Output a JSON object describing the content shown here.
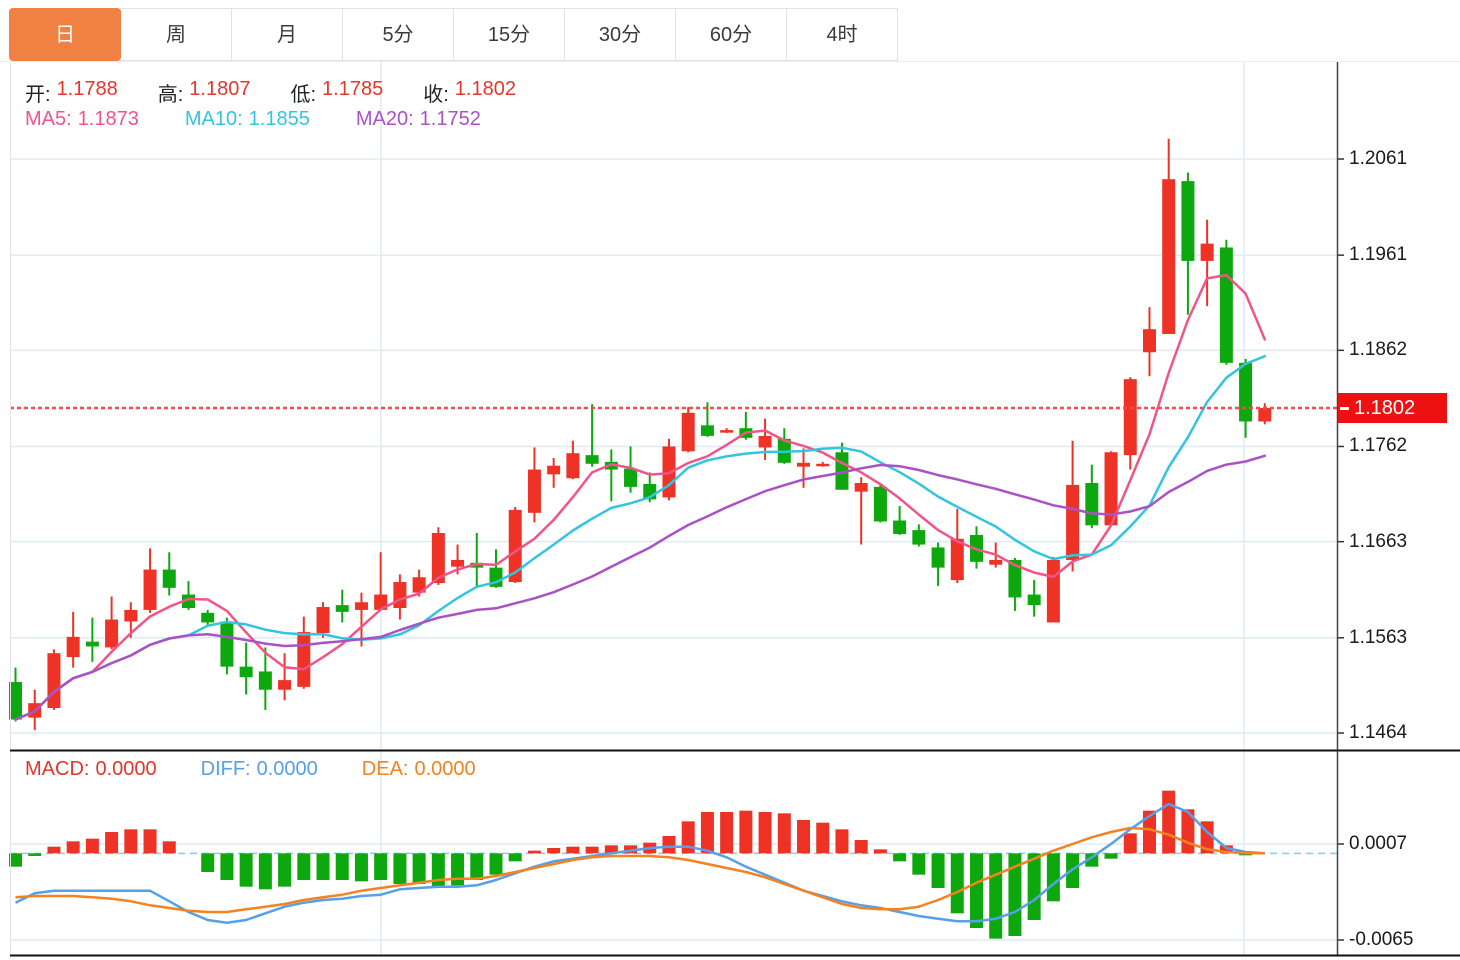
{
  "tabs": {
    "items": [
      {
        "label": "日",
        "active": true
      },
      {
        "label": "周",
        "active": false
      },
      {
        "label": "月",
        "active": false
      },
      {
        "label": "5分",
        "active": false
      },
      {
        "label": "15分",
        "active": false
      },
      {
        "label": "30分",
        "active": false
      },
      {
        "label": "60分",
        "active": false
      },
      {
        "label": "4时",
        "active": false
      }
    ]
  },
  "main_legend": {
    "ohlc": [
      {
        "label": "开:",
        "value": "1.1788"
      },
      {
        "label": "高:",
        "value": "1.1807"
      },
      {
        "label": "低:",
        "value": "1.1785"
      },
      {
        "label": "收:",
        "value": "1.1802"
      }
    ],
    "ohlc_value_color": "#e8352a",
    "ma": [
      {
        "label": "MA5:",
        "value": "1.1873",
        "color": "#f0548b"
      },
      {
        "label": "MA10:",
        "value": "1.1855",
        "color": "#33c4e0"
      },
      {
        "label": "MA20:",
        "value": "1.1752",
        "color": "#aa52c5"
      }
    ]
  },
  "macd_legend": [
    {
      "label": "MACD:",
      "value": "0.0000",
      "color": "#e5342a"
    },
    {
      "label": "DIFF:",
      "value": "0.0000",
      "color": "#55a0e8"
    },
    {
      "label": "DEA:",
      "value": "0.0000",
      "color": "#f5821f"
    }
  ],
  "price_axis": {
    "ticks": [
      "1.2061",
      "1.1961",
      "1.1862",
      "1.1762",
      "1.1663",
      "1.1563",
      "1.1464"
    ],
    "current": {
      "value": "1.1802"
    }
  },
  "macd_axis": {
    "ticks": [
      "0.0007",
      "-0.0065"
    ]
  },
  "chart_data": {
    "type": "candlestick",
    "panels": [
      "price",
      "macd"
    ],
    "grid": true,
    "legend_position": "top-left",
    "price_ticks": [
      1.2061,
      1.1961,
      1.1862,
      1.1762,
      1.1663,
      1.1563,
      1.1464
    ],
    "current_price": 1.1802,
    "up_down_convention": "red-up-green-down",
    "ohlc": [
      [
        1.1517,
        1.1532,
        1.1476,
        1.1478
      ],
      [
        1.148,
        1.1509,
        1.1467,
        1.1495
      ],
      [
        1.149,
        1.1551,
        1.1488,
        1.1547
      ],
      [
        1.1543,
        1.159,
        1.1532,
        1.1564
      ],
      [
        1.1559,
        1.1584,
        1.1538,
        1.1554
      ],
      [
        1.1553,
        1.1606,
        1.1551,
        1.1582
      ],
      [
        1.158,
        1.16,
        1.1563,
        1.1592
      ],
      [
        1.1592,
        1.1656,
        1.1589,
        1.1634
      ],
      [
        1.1634,
        1.1652,
        1.1607,
        1.1615
      ],
      [
        1.1608,
        1.1622,
        1.1592,
        1.1594
      ],
      [
        1.1589,
        1.1592,
        1.1575,
        1.1579
      ],
      [
        1.158,
        1.1584,
        1.1525,
        1.1533
      ],
      [
        1.1533,
        1.1558,
        1.1504,
        1.1522
      ],
      [
        1.1528,
        1.1553,
        1.1488,
        1.1509
      ],
      [
        1.1509,
        1.1547,
        1.1498,
        1.1519
      ],
      [
        1.1512,
        1.1585,
        1.151,
        1.1569
      ],
      [
        1.1568,
        1.16,
        1.1563,
        1.1595
      ],
      [
        1.1597,
        1.1613,
        1.1579,
        1.159
      ],
      [
        1.1592,
        1.161,
        1.1554,
        1.16
      ],
      [
        1.1592,
        1.1652,
        1.1592,
        1.1608
      ],
      [
        1.1594,
        1.1629,
        1.1582,
        1.1621
      ],
      [
        1.161,
        1.1634,
        1.1606,
        1.1626
      ],
      [
        1.162,
        1.1678,
        1.1618,
        1.1672
      ],
      [
        1.1637,
        1.166,
        1.1629,
        1.1644
      ],
      [
        1.1641,
        1.1672,
        1.1616,
        1.1636
      ],
      [
        1.1636,
        1.1655,
        1.1615,
        1.1616
      ],
      [
        1.1621,
        1.1699,
        1.162,
        1.1696
      ],
      [
        1.1693,
        1.1761,
        1.1683,
        1.1738
      ],
      [
        1.1733,
        1.175,
        1.1719,
        1.1742
      ],
      [
        1.1729,
        1.1768,
        1.1728,
        1.1755
      ],
      [
        1.1753,
        1.1806,
        1.1741,
        1.1744
      ],
      [
        1.1746,
        1.1759,
        1.1705,
        1.1738
      ],
      [
        1.1739,
        1.1762,
        1.1714,
        1.172
      ],
      [
        1.1723,
        1.1735,
        1.1704,
        1.1707
      ],
      [
        1.1709,
        1.177,
        1.1706,
        1.1762
      ],
      [
        1.1757,
        1.1803,
        1.1756,
        1.1797
      ],
      [
        1.1784,
        1.1808,
        1.1772,
        1.1773
      ],
      [
        1.1777,
        1.1781,
        1.1776,
        1.1779
      ],
      [
        1.1781,
        1.1798,
        1.1769,
        1.1771
      ],
      [
        1.1761,
        1.1791,
        1.1748,
        1.1773
      ],
      [
        1.177,
        1.1781,
        1.1744,
        1.1745
      ],
      [
        1.1741,
        1.176,
        1.1719,
        1.1745
      ],
      [
        1.1742,
        1.1746,
        1.1741,
        1.1744
      ],
      [
        1.1756,
        1.1766,
        1.1717,
        1.1717
      ],
      [
        1.1715,
        1.173,
        1.166,
        1.1724
      ],
      [
        1.172,
        1.1724,
        1.1683,
        1.1684
      ],
      [
        1.1685,
        1.17,
        1.167,
        1.1671
      ],
      [
        1.1675,
        1.1681,
        1.1658,
        1.166
      ],
      [
        1.1657,
        1.1662,
        1.1617,
        1.1636
      ],
      [
        1.1623,
        1.1697,
        1.162,
        1.1666
      ],
      [
        1.167,
        1.1679,
        1.1635,
        1.1642
      ],
      [
        1.1639,
        1.1662,
        1.1636,
        1.1644
      ],
      [
        1.1644,
        1.1646,
        1.1591,
        1.1605
      ],
      [
        1.1608,
        1.1623,
        1.1585,
        1.1597
      ],
      [
        1.1579,
        1.1647,
        1.1579,
        1.1644
      ],
      [
        1.1644,
        1.1768,
        1.1632,
        1.1722
      ],
      [
        1.1724,
        1.1743,
        1.1677,
        1.168
      ],
      [
        1.168,
        1.1757,
        1.1679,
        1.1756
      ],
      [
        1.1753,
        1.1834,
        1.1738,
        1.1832
      ],
      [
        1.186,
        1.1907,
        1.1835,
        1.1884
      ],
      [
        1.1879,
        1.2082,
        1.1879,
        1.204
      ],
      [
        1.2038,
        1.2047,
        1.1899,
        1.1955
      ],
      [
        1.1955,
        1.1998,
        1.1908,
        1.1973
      ],
      [
        1.1969,
        1.1977,
        1.1847,
        1.1849
      ],
      [
        1.1849,
        1.1853,
        1.1771,
        1.1788
      ],
      [
        1.1788,
        1.1807,
        1.1785,
        1.1802
      ]
    ],
    "ma_periods": [
      5,
      10,
      20
    ],
    "macd": {
      "ticks": [
        0.0007,
        -0.0065
      ],
      "hist": [
        -0.001,
        -0.0002,
        0.0005,
        0.0009,
        0.0011,
        0.0016,
        0.0018,
        0.0018,
        0.0009,
        0.0,
        -0.0014,
        -0.002,
        -0.0025,
        -0.0027,
        -0.0025,
        -0.002,
        -0.002,
        -0.002,
        -0.0021,
        -0.002,
        -0.0023,
        -0.0023,
        -0.0025,
        -0.0024,
        -0.002,
        -0.0016,
        -0.0006,
        0.0002,
        0.0004,
        0.0005,
        0.0005,
        0.0006,
        0.0006,
        0.0008,
        0.0013,
        0.0024,
        0.0031,
        0.0031,
        0.0032,
        0.0031,
        0.003,
        0.0025,
        0.0023,
        0.0018,
        0.001,
        0.0003,
        -0.0006,
        -0.0016,
        -0.0026,
        -0.0045,
        -0.0056,
        -0.0064,
        -0.0062,
        -0.005,
        -0.0036,
        -0.0026,
        -0.001,
        -0.0004,
        0.0015,
        0.0032,
        0.0047,
        0.0033,
        0.0024,
        0.0006,
        -0.0001,
        0.0
      ],
      "diff": [
        -0.0037,
        -0.003,
        -0.0028,
        -0.0028,
        -0.0028,
        -0.0028,
        -0.0028,
        -0.0028,
        -0.0036,
        -0.0044,
        -0.005,
        -0.0052,
        -0.005,
        -0.0045,
        -0.004,
        -0.0037,
        -0.0035,
        -0.0034,
        -0.0032,
        -0.0031,
        -0.0027,
        -0.0026,
        -0.0025,
        -0.0025,
        -0.0024,
        -0.002,
        -0.0015,
        -0.001,
        -0.0006,
        -0.0004,
        -0.0002,
        0.0,
        0.0002,
        0.0004,
        0.0005,
        0.0005,
        0.0002,
        -0.0003,
        -0.001,
        -0.0016,
        -0.0022,
        -0.0028,
        -0.0032,
        -0.0036,
        -0.0039,
        -0.0041,
        -0.0044,
        -0.0047,
        -0.0049,
        -0.0051,
        -0.0051,
        -0.0049,
        -0.0044,
        -0.0035,
        -0.0023,
        -0.0012,
        -0.0003,
        0.0007,
        0.0018,
        0.0028,
        0.0037,
        0.0031,
        0.0016,
        0.0004,
        0.0001,
        0.0
      ],
      "dea": [
        -0.0033,
        -0.0032,
        -0.0032,
        -0.0032,
        -0.0033,
        -0.0034,
        -0.0036,
        -0.0039,
        -0.0041,
        -0.0043,
        -0.0044,
        -0.0044,
        -0.0042,
        -0.004,
        -0.0038,
        -0.0035,
        -0.0033,
        -0.0031,
        -0.0028,
        -0.0026,
        -0.0024,
        -0.0022,
        -0.002,
        -0.0019,
        -0.0019,
        -0.0017,
        -0.0014,
        -0.0011,
        -0.0008,
        -0.0005,
        -0.0003,
        -0.0002,
        -0.0002,
        -0.0002,
        -0.0003,
        -0.0005,
        -0.0008,
        -0.0011,
        -0.0014,
        -0.0018,
        -0.0023,
        -0.0028,
        -0.0033,
        -0.0038,
        -0.0041,
        -0.0042,
        -0.0042,
        -0.004,
        -0.0035,
        -0.0029,
        -0.0022,
        -0.0016,
        -0.001,
        -0.0004,
        0.0002,
        0.0007,
        0.0012,
        0.0016,
        0.0019,
        0.0018,
        0.0014,
        0.0008,
        0.0003,
        0.0001,
        0.0,
        0.0
      ]
    },
    "colors": {
      "up": "#ee3226",
      "down": "#0da80d",
      "ma5": "#f0548b",
      "ma10": "#33c4e0",
      "ma20": "#aa52c5",
      "diff": "#55a0e8",
      "dea": "#f5821f",
      "grid": "#dfeaf5",
      "zero_line": "#7fcfe8",
      "dotted": "#f64b4b",
      "tag_bg": "#ee1111",
      "tab_active": "#f08143",
      "axis_line": "#444444",
      "separator": "#111111"
    }
  }
}
